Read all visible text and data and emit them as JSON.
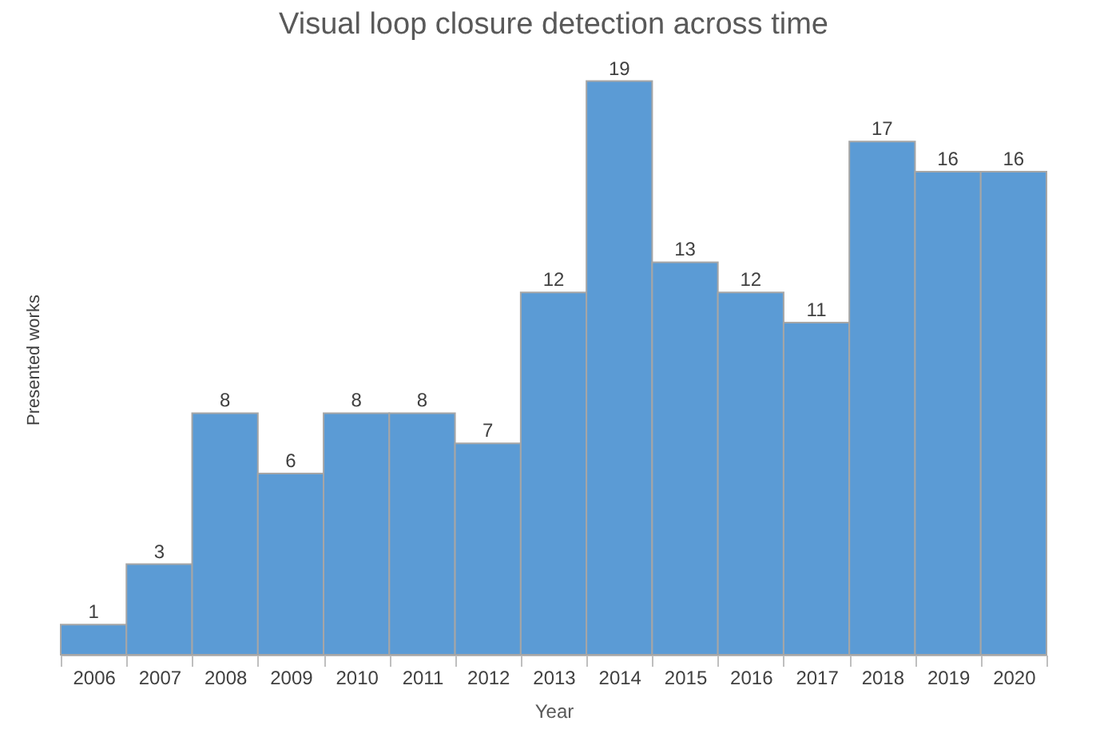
{
  "chart_data": {
    "type": "bar",
    "title": "Visual loop closure detection across time",
    "xlabel": "Year",
    "ylabel": "Presented works",
    "categories": [
      "2006",
      "2007",
      "2008",
      "2009",
      "2010",
      "2011",
      "2012",
      "2013",
      "2014",
      "2015",
      "2016",
      "2017",
      "2018",
      "2019",
      "2020"
    ],
    "values": [
      1,
      3,
      8,
      6,
      8,
      8,
      7,
      12,
      19,
      13,
      12,
      11,
      17,
      16,
      16
    ],
    "color": "#5b9bd5",
    "data_labels": true
  }
}
